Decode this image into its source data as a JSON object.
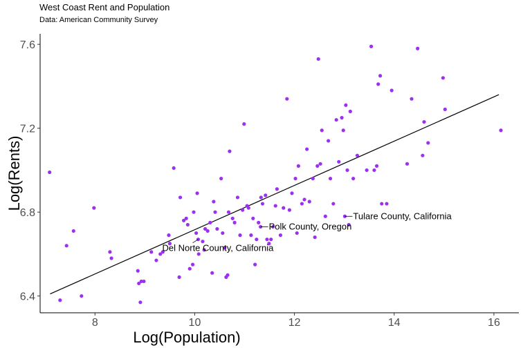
{
  "chart_data": {
    "type": "scatter",
    "title": "West Coast Rent and Population",
    "subtitle": "Data: American Community Survey",
    "xlabel": "Log(Population)",
    "ylabel": "Log(Rents)",
    "xlim": [
      6.9,
      16.5
    ],
    "ylim": [
      6.32,
      7.65
    ],
    "x_ticks": [
      8,
      10,
      12,
      14,
      16
    ],
    "x_tick_labels": [
      "8",
      "10",
      "12",
      "14",
      "16"
    ],
    "y_ticks": [
      6.4,
      6.8,
      7.2,
      7.6
    ],
    "y_tick_labels": [
      "6.4",
      "6.8",
      "7.2",
      "7.6"
    ],
    "grid": false,
    "point_color": "#9b30f0",
    "line_color": "#000000",
    "trend_line": {
      "x": [
        7.1,
        16.1
      ],
      "y": [
        6.41,
        7.36
      ]
    },
    "points": [
      {
        "x": 7.09,
        "y": 6.99
      },
      {
        "x": 7.3,
        "y": 6.38
      },
      {
        "x": 7.43,
        "y": 6.64
      },
      {
        "x": 7.57,
        "y": 6.71
      },
      {
        "x": 7.73,
        "y": 6.4
      },
      {
        "x": 7.98,
        "y": 6.82
      },
      {
        "x": 8.3,
        "y": 6.61
      },
      {
        "x": 8.33,
        "y": 6.58
      },
      {
        "x": 8.86,
        "y": 6.52
      },
      {
        "x": 8.88,
        "y": 6.46
      },
      {
        "x": 8.91,
        "y": 6.37
      },
      {
        "x": 8.93,
        "y": 6.47
      },
      {
        "x": 8.98,
        "y": 6.47
      },
      {
        "x": 9.13,
        "y": 6.61
      },
      {
        "x": 9.23,
        "y": 6.57
      },
      {
        "x": 9.31,
        "y": 6.6
      },
      {
        "x": 9.36,
        "y": 6.61
      },
      {
        "x": 9.48,
        "y": 6.69
      },
      {
        "x": 9.5,
        "y": 6.65
      },
      {
        "x": 9.58,
        "y": 7.01
      },
      {
        "x": 9.69,
        "y": 6.49
      },
      {
        "x": 9.71,
        "y": 6.87
      },
      {
        "x": 9.78,
        "y": 6.76
      },
      {
        "x": 9.83,
        "y": 6.77
      },
      {
        "x": 9.86,
        "y": 6.74
      },
      {
        "x": 9.9,
        "y": 6.53
      },
      {
        "x": 9.96,
        "y": 6.55
      },
      {
        "x": 9.98,
        "y": 6.8
      },
      {
        "x": 10.03,
        "y": 6.7
      },
      {
        "x": 10.05,
        "y": 6.89
      },
      {
        "x": 10.08,
        "y": 6.6
      },
      {
        "x": 10.16,
        "y": 6.66
      },
      {
        "x": 10.19,
        "y": 6.62
      },
      {
        "x": 10.21,
        "y": 6.72
      },
      {
        "x": 10.26,
        "y": 6.71
      },
      {
        "x": 10.31,
        "y": 6.75
      },
      {
        "x": 10.35,
        "y": 6.51
      },
      {
        "x": 10.38,
        "y": 6.85
      },
      {
        "x": 10.41,
        "y": 6.8
      },
      {
        "x": 10.45,
        "y": 6.72
      },
      {
        "x": 10.53,
        "y": 6.96
      },
      {
        "x": 10.56,
        "y": 6.7
      },
      {
        "x": 10.6,
        "y": 6.63
      },
      {
        "x": 10.63,
        "y": 6.49
      },
      {
        "x": 10.66,
        "y": 6.5
      },
      {
        "x": 10.68,
        "y": 6.8
      },
      {
        "x": 10.7,
        "y": 7.09
      },
      {
        "x": 10.76,
        "y": 6.77
      },
      {
        "x": 10.8,
        "y": 6.75
      },
      {
        "x": 10.86,
        "y": 6.87
      },
      {
        "x": 10.91,
        "y": 6.69
      },
      {
        "x": 10.96,
        "y": 6.81
      },
      {
        "x": 10.99,
        "y": 7.22
      },
      {
        "x": 11.05,
        "y": 6.83
      },
      {
        "x": 11.08,
        "y": 6.82
      },
      {
        "x": 11.13,
        "y": 6.69
      },
      {
        "x": 11.17,
        "y": 6.77
      },
      {
        "x": 11.21,
        "y": 6.55
      },
      {
        "x": 11.24,
        "y": 6.67
      },
      {
        "x": 11.28,
        "y": 6.75
      },
      {
        "x": 11.33,
        "y": 6.87
      },
      {
        "x": 11.36,
        "y": 6.84
      },
      {
        "x": 11.42,
        "y": 6.88
      },
      {
        "x": 11.45,
        "y": 6.67
      },
      {
        "x": 11.49,
        "y": 6.65
      },
      {
        "x": 11.53,
        "y": 6.67
      },
      {
        "x": 11.57,
        "y": 6.73
      },
      {
        "x": 11.62,
        "y": 6.83
      },
      {
        "x": 11.65,
        "y": 6.91
      },
      {
        "x": 11.72,
        "y": 6.69
      },
      {
        "x": 11.78,
        "y": 6.82
      },
      {
        "x": 11.85,
        "y": 7.34
      },
      {
        "x": 11.9,
        "y": 6.81
      },
      {
        "x": 11.95,
        "y": 6.89
      },
      {
        "x": 12.02,
        "y": 6.96
      },
      {
        "x": 12.05,
        "y": 6.7
      },
      {
        "x": 12.08,
        "y": 7.02
      },
      {
        "x": 12.15,
        "y": 6.84
      },
      {
        "x": 12.2,
        "y": 6.86
      },
      {
        "x": 12.25,
        "y": 7.1
      },
      {
        "x": 12.3,
        "y": 6.85
      },
      {
        "x": 12.37,
        "y": 6.96
      },
      {
        "x": 12.41,
        "y": 6.68
      },
      {
        "x": 12.46,
        "y": 7.02
      },
      {
        "x": 12.48,
        "y": 7.53
      },
      {
        "x": 12.52,
        "y": 7.03
      },
      {
        "x": 12.55,
        "y": 7.19
      },
      {
        "x": 12.62,
        "y": 6.78
      },
      {
        "x": 12.68,
        "y": 7.14
      },
      {
        "x": 12.72,
        "y": 6.96
      },
      {
        "x": 12.78,
        "y": 6.84
      },
      {
        "x": 12.84,
        "y": 7.24
      },
      {
        "x": 12.89,
        "y": 7.04
      },
      {
        "x": 12.95,
        "y": 7.25
      },
      {
        "x": 12.98,
        "y": 7.19
      },
      {
        "x": 13.03,
        "y": 7.31
      },
      {
        "x": 13.06,
        "y": 7.0
      },
      {
        "x": 13.12,
        "y": 7.28
      },
      {
        "x": 13.18,
        "y": 6.96
      },
      {
        "x": 13.26,
        "y": 7.07
      },
      {
        "x": 13.45,
        "y": 7.0
      },
      {
        "x": 13.54,
        "y": 7.59
      },
      {
        "x": 13.6,
        "y": 7.0
      },
      {
        "x": 13.65,
        "y": 7.02
      },
      {
        "x": 13.68,
        "y": 7.41
      },
      {
        "x": 13.72,
        "y": 7.45
      },
      {
        "x": 13.75,
        "y": 6.84
      },
      {
        "x": 13.85,
        "y": 6.84
      },
      {
        "x": 13.95,
        "y": 7.38
      },
      {
        "x": 14.26,
        "y": 7.03
      },
      {
        "x": 14.35,
        "y": 7.34
      },
      {
        "x": 14.47,
        "y": 7.58
      },
      {
        "x": 14.57,
        "y": 7.07
      },
      {
        "x": 14.6,
        "y": 7.23
      },
      {
        "x": 14.68,
        "y": 7.13
      },
      {
        "x": 14.98,
        "y": 7.44
      },
      {
        "x": 15.02,
        "y": 7.29
      },
      {
        "x": 16.14,
        "y": 7.19
      },
      {
        "x": 10.07,
        "y": 6.67
      },
      {
        "x": 11.32,
        "y": 6.73
      },
      {
        "x": 13.09,
        "y": 6.74
      },
      {
        "x": 13.01,
        "y": 6.78
      }
    ],
    "annotations": [
      {
        "label": "Tulare County, California",
        "x": 13.01,
        "y": 6.78
      },
      {
        "label": "Polk County, Oregon",
        "x": 11.32,
        "y": 6.73
      },
      {
        "label": "Del Norte County, California",
        "x": 10.07,
        "y": 6.67
      }
    ]
  }
}
